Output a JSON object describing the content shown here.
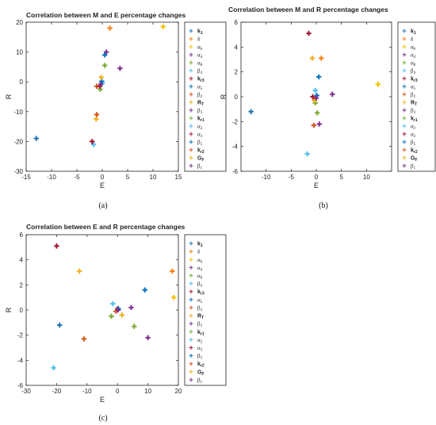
{
  "legend_items": [
    "k1",
    "δ",
    "α6",
    "α4",
    "α8",
    "β4",
    "kr3",
    "α5",
    "β2",
    "RT",
    "β3",
    "kr1",
    "α2",
    "α3",
    "β5",
    "kr2",
    "GF",
    "β1"
  ],
  "legend_bold": [
    true,
    false,
    false,
    false,
    false,
    false,
    true,
    false,
    false,
    true,
    false,
    true,
    false,
    false,
    false,
    true,
    true,
    false
  ],
  "colors": [
    "#1f77b4",
    "#ff7f0e",
    "#f2c200",
    "#7e2f8e",
    "#77ac30",
    "#4dbeee",
    "#a2142f",
    "#0072bd",
    "#d95319",
    "#edb120",
    "#7e2f8e",
    "#77ac30",
    "#4dbeee",
    "#a2142f",
    "#0072bd",
    "#d95319",
    "#edb120",
    "#7e2f8e"
  ],
  "chart_data": [
    {
      "type": "scatter",
      "title": "Correlation between M and E percentage changes",
      "caption": "(a)",
      "xlabel": "E",
      "ylabel": "R",
      "xlim": [
        -15,
        15
      ],
      "ylim": [
        -30,
        20
      ],
      "xticks": [
        -15,
        -10,
        -5,
        0,
        5,
        10,
        15
      ],
      "yticks": [
        -30,
        -20,
        -10,
        0,
        10,
        20
      ],
      "points": [
        {
          "series": "k1",
          "x": -13,
          "y": -19
        },
        {
          "series": "δ",
          "x": 1.5,
          "y": 18
        },
        {
          "series": "α6",
          "x": 12,
          "y": 18.5
        },
        {
          "series": "α4",
          "x": 0.8,
          "y": 10
        },
        {
          "series": "α8",
          "x": 0.5,
          "y": 5.5
        },
        {
          "series": "β4",
          "x": -1.7,
          "y": -21
        },
        {
          "series": "kr3",
          "x": -2,
          "y": -20
        },
        {
          "series": "α5",
          "x": 0.5,
          "y": 9
        },
        {
          "series": "β2",
          "x": -1.1,
          "y": -1.5
        },
        {
          "series": "RT",
          "x": -1.2,
          "y": -12.5
        },
        {
          "series": "β3",
          "x": 3.5,
          "y": 4.5
        },
        {
          "series": "kr1",
          "x": -0.4,
          "y": -2.5
        },
        {
          "series": "α2",
          "x": 0,
          "y": -0.5
        },
        {
          "series": "α3",
          "x": -0.5,
          "y": -1.5
        },
        {
          "series": "β5",
          "x": -0.1,
          "y": 0.2
        },
        {
          "series": "kr2",
          "x": -1.1,
          "y": -11
        },
        {
          "series": "GF",
          "x": -0.2,
          "y": 1.5
        },
        {
          "series": "β1",
          "x": -0.3,
          "y": -0.8
        }
      ]
    },
    {
      "type": "scatter",
      "title": "Correlation between M and R percentage changes",
      "caption": "(b)",
      "xlabel": "E",
      "ylabel": "R",
      "xlim": [
        -15,
        15
      ],
      "ylim": [
        -6,
        6
      ],
      "xticks": [
        -10,
        -5,
        0,
        5,
        10
      ],
      "yticks": [
        -6,
        -4,
        -2,
        0,
        2,
        4,
        6
      ],
      "points": [
        {
          "series": "k1",
          "x": -13,
          "y": -1.2
        },
        {
          "series": "δ",
          "x": 1,
          "y": 3.1
        },
        {
          "series": "α6",
          "x": 12.3,
          "y": 1
        },
        {
          "series": "α4",
          "x": 3.2,
          "y": 0.2
        },
        {
          "series": "α8",
          "x": -0.2,
          "y": -0.5
        },
        {
          "series": "β4",
          "x": -1.8,
          "y": -4.6
        },
        {
          "series": "kr3",
          "x": -1.5,
          "y": 5.1
        },
        {
          "series": "α5",
          "x": 0.5,
          "y": 1.6
        },
        {
          "series": "β2",
          "x": -0.5,
          "y": -2.3
        },
        {
          "series": "RT",
          "x": -0.8,
          "y": 3.1
        },
        {
          "series": "β3",
          "x": 0.6,
          "y": -2.2
        },
        {
          "series": "kr1",
          "x": 0.2,
          "y": -1.3
        },
        {
          "series": "α2",
          "x": -0.2,
          "y": 0.5
        },
        {
          "series": "α3",
          "x": -0.7,
          "y": 0
        },
        {
          "series": "β5",
          "x": 0.1,
          "y": 0.1
        },
        {
          "series": "kr2",
          "x": -0.4,
          "y": -0.2
        },
        {
          "series": "GF",
          "x": -0.3,
          "y": -0.3
        },
        {
          "series": "β1",
          "x": 0,
          "y": -0.1
        }
      ]
    },
    {
      "type": "scatter",
      "title": "Correlation between E and R percentage changes",
      "caption": "(c)",
      "xlabel": "E",
      "ylabel": "R",
      "xlim": [
        -30,
        20
      ],
      "ylim": [
        -6,
        6
      ],
      "xticks": [
        -30,
        -20,
        -10,
        0,
        10,
        20
      ],
      "yticks": [
        -6,
        -4,
        -2,
        0,
        2,
        4,
        6
      ],
      "points": [
        {
          "series": "k1",
          "x": -19,
          "y": -1.2
        },
        {
          "series": "δ",
          "x": 18,
          "y": 3.1
        },
        {
          "series": "α6",
          "x": 18.5,
          "y": 1
        },
        {
          "series": "α4",
          "x": 10,
          "y": -2.2
        },
        {
          "series": "α8",
          "x": 5.5,
          "y": -1.3
        },
        {
          "series": "β4",
          "x": -21,
          "y": -4.6
        },
        {
          "series": "kr3",
          "x": -20,
          "y": 5.1
        },
        {
          "series": "α5",
          "x": 9,
          "y": 1.6
        },
        {
          "series": "β2",
          "x": -11,
          "y": -2.3
        },
        {
          "series": "RT",
          "x": -12.5,
          "y": 3.1
        },
        {
          "series": "β3",
          "x": 4.5,
          "y": 0.2
        },
        {
          "series": "kr1",
          "x": -2,
          "y": -0.5
        },
        {
          "series": "α2",
          "x": -1.5,
          "y": 0.5
        },
        {
          "series": "α3",
          "x": 0,
          "y": 0.1
        },
        {
          "series": "β5",
          "x": 0.3,
          "y": 0.1
        },
        {
          "series": "kr2",
          "x": -0.5,
          "y": -0.1
        },
        {
          "series": "GF",
          "x": 1.5,
          "y": -0.4
        },
        {
          "series": "β1",
          "x": 0.2,
          "y": 0
        }
      ]
    }
  ]
}
